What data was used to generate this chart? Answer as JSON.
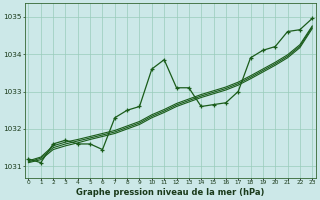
{
  "hours": [
    0,
    1,
    2,
    3,
    4,
    5,
    6,
    7,
    8,
    9,
    10,
    11,
    12,
    13,
    14,
    15,
    16,
    17,
    18,
    19,
    20,
    21,
    22,
    23
  ],
  "main_y": [
    1031.2,
    1031.1,
    1031.6,
    1031.7,
    1031.6,
    1031.6,
    1031.45,
    1032.3,
    1032.5,
    1032.6,
    1033.6,
    1033.85,
    1033.1,
    1033.1,
    1032.6,
    1032.65,
    1032.7,
    1033.0,
    1033.9,
    1034.1,
    1034.2,
    1034.6,
    1034.65,
    1034.95
  ],
  "trend1": [
    1031.15,
    1031.25,
    1031.55,
    1031.65,
    1031.72,
    1031.8,
    1031.88,
    1031.96,
    1032.08,
    1032.2,
    1032.38,
    1032.52,
    1032.68,
    1032.8,
    1032.92,
    1033.02,
    1033.12,
    1033.25,
    1033.42,
    1033.6,
    1033.78,
    1033.98,
    1034.25,
    1034.75
  ],
  "trend2": [
    1031.12,
    1031.22,
    1031.5,
    1031.6,
    1031.68,
    1031.76,
    1031.84,
    1031.92,
    1032.04,
    1032.16,
    1032.34,
    1032.48,
    1032.64,
    1032.76,
    1032.88,
    1032.98,
    1033.08,
    1033.21,
    1033.38,
    1033.56,
    1033.74,
    1033.94,
    1034.21,
    1034.72
  ],
  "trend3": [
    1031.1,
    1031.18,
    1031.45,
    1031.55,
    1031.63,
    1031.72,
    1031.8,
    1031.88,
    1032.0,
    1032.12,
    1032.3,
    1032.44,
    1032.6,
    1032.72,
    1032.84,
    1032.94,
    1033.04,
    1033.17,
    1033.34,
    1033.52,
    1033.7,
    1033.9,
    1034.17,
    1034.68
  ],
  "bg_color": "#cce8e8",
  "line_color": "#1a5c1a",
  "grid_color": "#99ccbb",
  "xlabel": "Graphe pression niveau de la mer (hPa)",
  "ylim_min": 1030.7,
  "ylim_max": 1035.35,
  "yticks": [
    1031,
    1032,
    1033,
    1034,
    1035
  ]
}
